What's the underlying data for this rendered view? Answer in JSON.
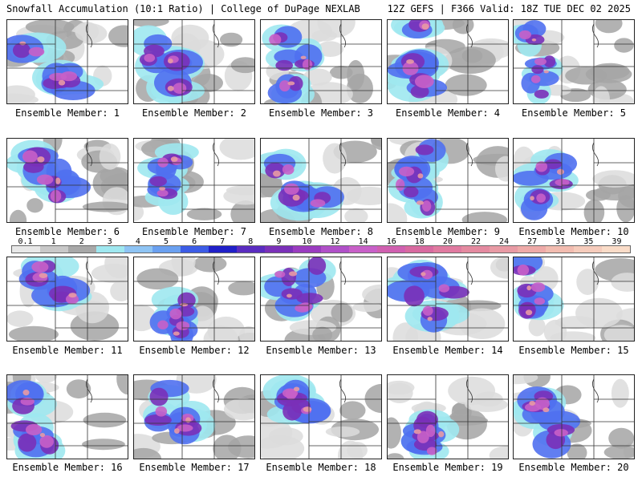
{
  "header": {
    "left": "Snowfall Accumulation (10:1 Ratio) | College of DuPage NEXLAB",
    "right": "12Z GEFS | F366 Valid: 18Z TUE DEC 02 2025"
  },
  "legend": {
    "labels": [
      "0.1",
      "1",
      "2",
      "3",
      "4",
      "5",
      "6",
      "7",
      "8",
      "9",
      "10",
      "12",
      "14",
      "16",
      "18",
      "20",
      "22",
      "24",
      "27",
      "31",
      "35",
      "39"
    ],
    "colors": [
      "#e8e8e8",
      "#c8c8c8",
      "#a8a8a8",
      "#9fe8f0",
      "#8ec4f4",
      "#6aa0f0",
      "#3c5ce6",
      "#2020c8",
      "#5a2cc0",
      "#7a30b8",
      "#9a3cc0",
      "#b050c8",
      "#c860c8",
      "#d060b0",
      "#d86aa0",
      "#e07aa0",
      "#e48aa0",
      "#e89aa4",
      "#eeaaa8",
      "#f2bcb0",
      "#f6ccbc",
      "#fadcc8"
    ]
  },
  "palette": {
    "gray_light": "#dcdcdc",
    "gray_dark": "#a4a4a4",
    "cyan": "#9fe8f0",
    "blue": "#5070f0",
    "purple": "#7a30b8",
    "magenta": "#c860c8",
    "pink": "#e89aa4",
    "map_lines": "#333333"
  },
  "members": [
    {
      "label": "Ensemble Member: 1",
      "coverage": 0.75
    },
    {
      "label": "Ensemble Member: 2",
      "coverage": 0.7
    },
    {
      "label": "Ensemble Member: 3",
      "coverage": 0.45
    },
    {
      "label": "Ensemble Member: 4",
      "coverage": 0.8
    },
    {
      "label": "Ensemble Member: 5",
      "coverage": 0.25
    },
    {
      "label": "Ensemble Member: 6",
      "coverage": 0.7
    },
    {
      "label": "Ensemble Member: 7",
      "coverage": 0.45
    },
    {
      "label": "Ensemble Member: 8",
      "coverage": 0.7
    },
    {
      "label": "Ensemble Member: 9",
      "coverage": 0.55
    },
    {
      "label": "Ensemble Member: 10",
      "coverage": 0.5
    },
    {
      "label": "Ensemble Member: 11",
      "coverage": 0.7
    },
    {
      "label": "Ensemble Member: 12",
      "coverage": 0.55
    },
    {
      "label": "Ensemble Member: 13",
      "coverage": 0.55
    },
    {
      "label": "Ensemble Member: 14",
      "coverage": 0.75
    },
    {
      "label": "Ensemble Member: 15",
      "coverage": 0.45
    },
    {
      "label": "Ensemble Member: 16",
      "coverage": 0.6
    },
    {
      "label": "Ensemble Member: 17",
      "coverage": 0.6
    },
    {
      "label": "Ensemble Member: 18",
      "coverage": 0.65
    },
    {
      "label": "Ensemble Member: 19",
      "coverage": 0.6
    },
    {
      "label": "Ensemble Member: 20",
      "coverage": 0.65
    }
  ]
}
